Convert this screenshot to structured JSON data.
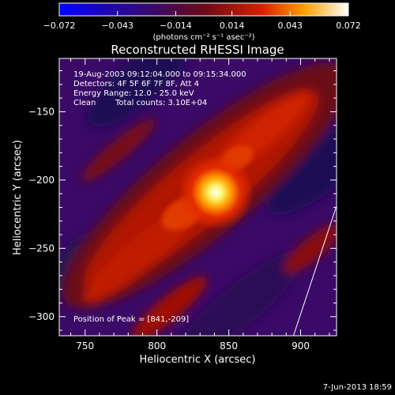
{
  "chart_data": {
    "type": "heatmap",
    "title": "Reconstructed RHESSI Image",
    "xlabel": "Heliocentric X (arcsec)",
    "ylabel": "Heliocentric Y (arcsec)",
    "xlim": [
      732,
      925
    ],
    "ylim": [
      -314,
      -111
    ],
    "x_ticks": [
      750,
      800,
      850,
      900
    ],
    "y_ticks": [
      -150,
      -200,
      -250,
      -300
    ],
    "x_tick_labels": [
      "750",
      "800",
      "850",
      "900"
    ],
    "y_tick_labels": [
      "−150",
      "−200",
      "−250",
      "−300"
    ],
    "colorbar": {
      "min": -0.072,
      "max": 0.072,
      "ticks": [
        -0.072,
        -0.043,
        -0.014,
        0.014,
        0.043,
        0.072
      ],
      "tick_labels": [
        "−0.072",
        "−0.043",
        "−0.014",
        "0.014",
        "0.043",
        "0.072"
      ],
      "unit_label": "(photons cm⁻² s⁻¹ asec⁻²)"
    },
    "annotations": {
      "time": "19-Aug-2003 09:12:04.000 to 09:15:34.000",
      "detectors": "Detectors: 4F 5F 6F 7F 8F, Att 4",
      "energy": "Energy Range: 12.0 - 25.0 keV",
      "method": "Clean",
      "counts": "Total counts: 3.10E+04",
      "peak": "Position of Peak = [841,-209]"
    },
    "peak": {
      "x": 841,
      "y": -209
    },
    "limb_line": [
      [
        895,
        -314
      ],
      [
        925,
        -219
      ]
    ]
  },
  "footer": {
    "date": "7-Jun-2013 18:59"
  }
}
